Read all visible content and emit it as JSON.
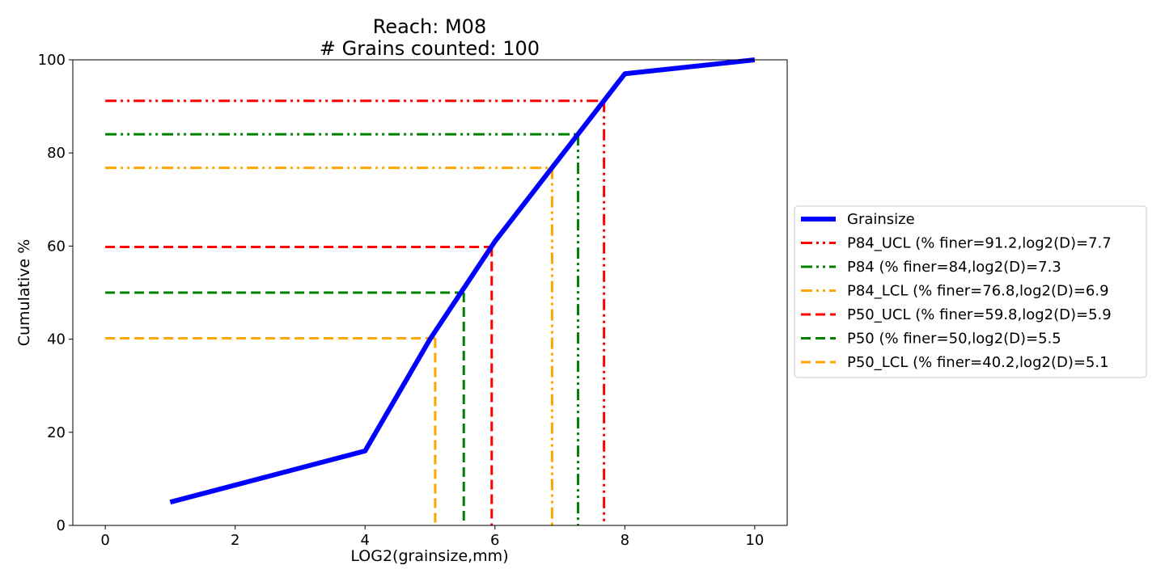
{
  "chart_data": {
    "type": "line",
    "title": "Reach: M08",
    "subtitle": "# Grains counted: 100",
    "xlabel": "LOG2(grainsize,mm)",
    "ylabel": "Cumulative %",
    "xlim": [
      -0.5,
      10.5
    ],
    "ylim": [
      0,
      100
    ],
    "xticks": [
      0,
      2,
      4,
      6,
      8,
      10
    ],
    "yticks": [
      0,
      20,
      40,
      60,
      80,
      100
    ],
    "grid": false,
    "legend_position": "right-outside",
    "series": [
      {
        "name": "Grainsize",
        "color": "#0000ff",
        "style": "solid",
        "x": [
          1,
          4,
          5,
          6,
          7,
          8,
          10
        ],
        "y": [
          5,
          16,
          40,
          61,
          79,
          97,
          100
        ]
      }
    ],
    "reference_lines": [
      {
        "name": "P84_UCL (% finer=91.2,log2(D)=7.7",
        "percent": 91.2,
        "log2d": 7.68,
        "color": "#ff0000",
        "style": "dashdotdot"
      },
      {
        "name": "P84 (% finer=84,log2(D)=7.3",
        "percent": 84,
        "log2d": 7.28,
        "color": "#008000",
        "style": "dashdotdot"
      },
      {
        "name": "P84_LCL (% finer=76.8,log2(D)=6.9",
        "percent": 76.8,
        "log2d": 6.88,
        "color": "#ffa500",
        "style": "dashdotdot"
      },
      {
        "name": "P50_UCL (% finer=59.8,log2(D)=5.9",
        "percent": 59.8,
        "log2d": 5.95,
        "color": "#ff0000",
        "style": "dashed"
      },
      {
        "name": "P50 (% finer=50,log2(D)=5.5",
        "percent": 50,
        "log2d": 5.52,
        "color": "#008000",
        "style": "dashed"
      },
      {
        "name": "P50_LCL (% finer=40.2,log2(D)=5.1",
        "percent": 40.2,
        "log2d": 5.08,
        "color": "#ffa500",
        "style": "dashed"
      }
    ]
  }
}
